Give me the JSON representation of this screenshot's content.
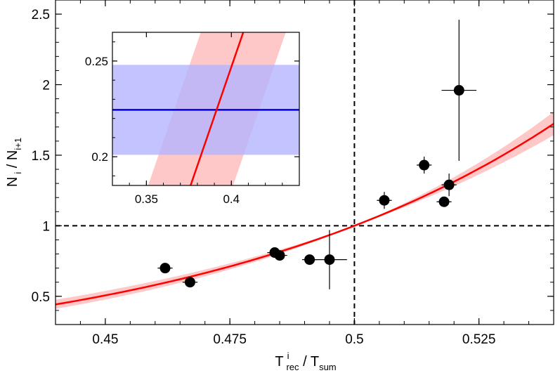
{
  "chart_data": [
    {
      "type": "scatter",
      "title": "",
      "xlabel": {
        "main": "T",
        "sup": "i",
        "sub": "rec",
        "sep": " / ",
        "main2": "T",
        "sub2": "sum"
      },
      "ylabel": {
        "main": "N",
        "sub": "i",
        "sep": " / ",
        "main2": "N",
        "sub2": "i+1"
      },
      "xlim": [
        0.44,
        0.54
      ],
      "ylim": [
        0.3,
        2.6
      ],
      "x_ticks": [
        0.45,
        0.475,
        0.5,
        0.525
      ],
      "x_tick_labels": [
        "0.45",
        "0.475",
        "0.5",
        "0.525"
      ],
      "y_ticks": [
        0.5,
        1,
        1.5,
        2,
        2.5
      ],
      "y_tick_labels": [
        "0.5",
        "1",
        "1.5",
        "2",
        "2.5"
      ],
      "grid": false,
      "reference_lines": {
        "x": 0.5,
        "y": 1,
        "style": "dashed",
        "color": "#000000"
      },
      "points": [
        {
          "x": 0.462,
          "y": 0.7,
          "xerr": 0.0015,
          "yerr": 0.0
        },
        {
          "x": 0.467,
          "y": 0.6,
          "xerr": 0.0015,
          "yerr": 0.0
        },
        {
          "x": 0.484,
          "y": 0.81,
          "xerr": 0.0015,
          "yerr": 0.0
        },
        {
          "x": 0.485,
          "y": 0.79,
          "xerr": 0.0015,
          "yerr": 0.0
        },
        {
          "x": 0.491,
          "y": 0.76,
          "xerr": 0.0015,
          "yerr": 0.0
        },
        {
          "x": 0.495,
          "y": 0.76,
          "xerr": 0.0035,
          "yerr": 0.21
        },
        {
          "x": 0.506,
          "y": 1.18,
          "xerr": 0.0015,
          "yerr": 0.06
        },
        {
          "x": 0.514,
          "y": 1.43,
          "xerr": 0.0015,
          "yerr": 0.06
        },
        {
          "x": 0.518,
          "y": 1.17,
          "xerr": 0.0015,
          "yerr": 0.0
        },
        {
          "x": 0.519,
          "y": 1.29,
          "xerr": 0.0015,
          "yerr": 0.08
        },
        {
          "x": 0.521,
          "y": 1.96,
          "xerr": 0.0035,
          "yerr": 0.5
        }
      ],
      "fit_curve": {
        "model": "exponential through (0.5, 1)",
        "rate": 13.6,
        "band_rate_low": 12.4,
        "band_rate_high": 14.8,
        "color": "#ff0000",
        "band_color": "#ffc8c8"
      },
      "colors": {
        "points": "#000000",
        "fit": "#ff0000",
        "band": "#ffc8c8"
      }
    },
    {
      "type": "line",
      "title": "",
      "xlim": [
        0.33,
        0.44
      ],
      "ylim": [
        0.185,
        0.265
      ],
      "x_ticks": [
        0.35,
        0.4
      ],
      "x_tick_labels": [
        "0.35",
        "0.4"
      ],
      "y_ticks": [
        0.2,
        0.25
      ],
      "y_tick_labels": [
        "0.2",
        "0.25"
      ],
      "horizontal_line": {
        "y": 0.2245,
        "band": [
          0.201,
          0.248
        ],
        "color": "#0000dd",
        "band_color": "#b4b4ff"
      },
      "fit_line": {
        "x_at_bottom": 0.376,
        "x_at_top": 0.407,
        "band_offset": 0.025,
        "color": "#ff0000",
        "band_color": "#ffc8c8"
      }
    }
  ]
}
